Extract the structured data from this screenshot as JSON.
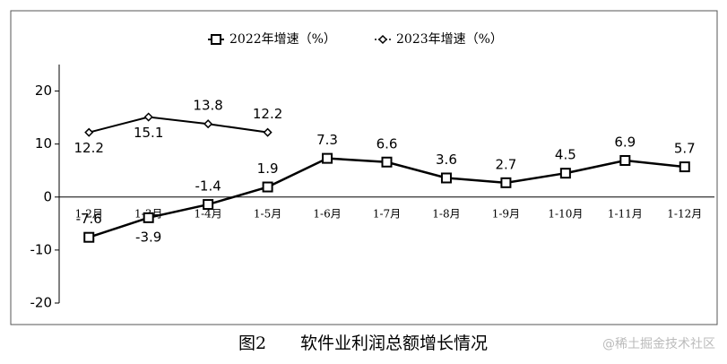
{
  "chart_data": {
    "type": "line",
    "categories": [
      "1-2月",
      "1-3月",
      "1-4月",
      "1-5月",
      "1-6月",
      "1-7月",
      "1-8月",
      "1-9月",
      "1-10月",
      "1-11月",
      "1-12月"
    ],
    "series": [
      {
        "name": "2022年增速（%）",
        "color": "#000000",
        "marker": "square",
        "values": [
          -7.6,
          -3.9,
          -1.4,
          1.9,
          7.3,
          6.6,
          3.6,
          2.7,
          4.5,
          6.9,
          5.7
        ]
      },
      {
        "name": "2023年增速（%）",
        "color": "#000000",
        "marker": "diamond",
        "values": [
          12.2,
          15.1,
          13.8,
          12.2,
          null,
          null,
          null,
          null,
          null,
          null,
          null
        ]
      }
    ],
    "ylim": [
      -20,
      25
    ],
    "yticks": [
      -20,
      -10,
      0,
      10,
      20
    ],
    "legend": "top",
    "caption": "图2　　软件业利润总额增长情况",
    "watermark": "@稀土掘金技术社区"
  }
}
